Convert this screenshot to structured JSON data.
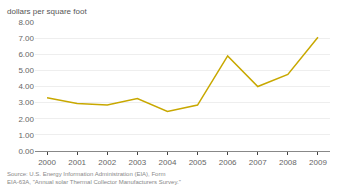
{
  "chart_data": {
    "type": "line",
    "x": [
      2000,
      2001,
      2002,
      2003,
      2004,
      2005,
      2006,
      2007,
      2008,
      2009
    ],
    "values": [
      3.3,
      2.95,
      2.85,
      3.25,
      2.45,
      2.85,
      5.9,
      4.0,
      4.75,
      7.05
    ],
    "color": "#c8a800",
    "ylabel": "dollars per square foot",
    "xlim": [
      1999.6,
      2009.4
    ],
    "xticks": [
      2000,
      2001,
      2002,
      2003,
      2004,
      2005,
      2006,
      2007,
      2008,
      2009
    ],
    "ylim": [
      0.0,
      8.0
    ],
    "yticks": [
      {
        "value": 0,
        "label": "0.00"
      },
      {
        "value": 1,
        "label": "1.00"
      },
      {
        "value": 2,
        "label": "2.00"
      },
      {
        "value": 3,
        "label": "3.00"
      },
      {
        "value": 4,
        "label": "4.00"
      },
      {
        "value": 5,
        "label": "5.00"
      },
      {
        "value": 6,
        "label": "6.00"
      },
      {
        "value": 7,
        "label": "7.00"
      },
      {
        "value": 8,
        "label": "8.00"
      }
    ],
    "grid": true,
    "annotations": [
      "Source: U.S. Energy Information Administration (EIA), Form EIA-63A, \"Annual solar Thermal Collector Manufacturers Survey.\""
    ]
  }
}
